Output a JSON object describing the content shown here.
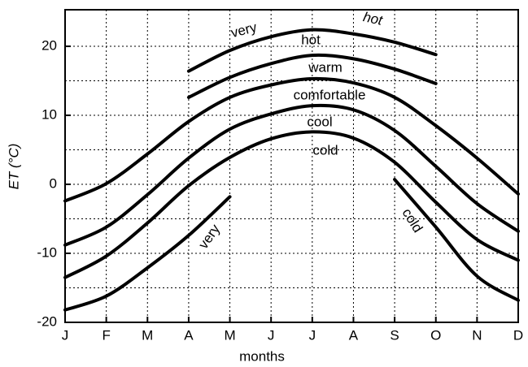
{
  "chart_data": {
    "type": "line",
    "x_label": "months",
    "y_label": "ET (°C)",
    "categories": [
      "J",
      "F",
      "M",
      "A",
      "M",
      "J",
      "J",
      "A",
      "S",
      "O",
      "N",
      "D"
    ],
    "ylim": [
      -20,
      25.3
    ],
    "yticks": [
      -20,
      -10,
      0,
      10,
      20
    ],
    "minor_yticks": [
      -15,
      -5,
      5,
      15
    ],
    "grid": true,
    "series": [
      {
        "color": "#000000",
        "values": [
          -18.2,
          -16.2,
          -12.1,
          -7.4,
          -1.8,
          null,
          null,
          null,
          0.7,
          -6.2,
          -13.3,
          -16.8
        ]
      },
      {
        "color": "#000000",
        "values": [
          -13.5,
          -10.4,
          -5.6,
          -0.2,
          3.9,
          6.6,
          7.6,
          6.7,
          3.2,
          -2.6,
          -8.0,
          -11.0
        ]
      },
      {
        "color": "#000000",
        "values": [
          -8.8,
          -6.2,
          -1.5,
          3.8,
          8.0,
          10.2,
          11.4,
          10.8,
          7.8,
          2.6,
          -2.8,
          -6.8
        ]
      },
      {
        "color": "#000000",
        "values": [
          -2.4,
          0.1,
          4.4,
          9.1,
          12.6,
          14.4,
          15.3,
          14.7,
          12.6,
          8.5,
          3.8,
          -1.4
        ]
      },
      {
        "color": "#000000",
        "values": [
          null,
          null,
          null,
          12.6,
          15.5,
          17.5,
          18.7,
          18.2,
          16.7,
          14.6,
          null,
          null
        ]
      },
      {
        "color": "#000000",
        "values": [
          null,
          null,
          null,
          16.4,
          19.4,
          21.4,
          22.4,
          21.8,
          20.6,
          18.8,
          null,
          null
        ]
      }
    ],
    "annotations": [
      "very",
      "hot",
      "hot",
      "warm",
      "comfortable",
      "cool",
      "cold",
      "very",
      "cold"
    ]
  }
}
